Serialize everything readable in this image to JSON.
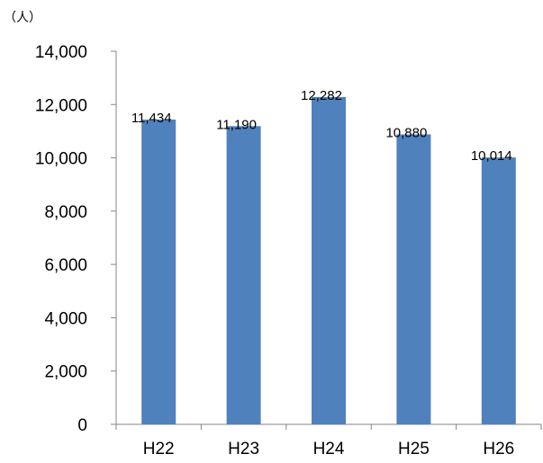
{
  "chart_data": {
    "type": "bar",
    "title": "",
    "xlabel": "",
    "ylabel": "",
    "unit_label": "（人）",
    "categories": [
      "H22",
      "H23",
      "H24",
      "H25",
      "H26"
    ],
    "values": [
      11434,
      11190,
      12282,
      10880,
      10014
    ],
    "value_labels": [
      "11,434",
      "11,190",
      "12,282",
      "10,880",
      "10,014"
    ],
    "ylim": [
      0,
      14000
    ],
    "yticks": [
      0,
      2000,
      4000,
      6000,
      8000,
      10000,
      12000,
      14000
    ],
    "ytick_labels": [
      "0",
      "2,000",
      "4,000",
      "6,000",
      "8,000",
      "10,000",
      "12,000",
      "14,000"
    ],
    "grid": false,
    "legend": "none",
    "colors": {
      "bar": "#4F81BD",
      "axis": "#868686",
      "text": "#000000"
    }
  }
}
